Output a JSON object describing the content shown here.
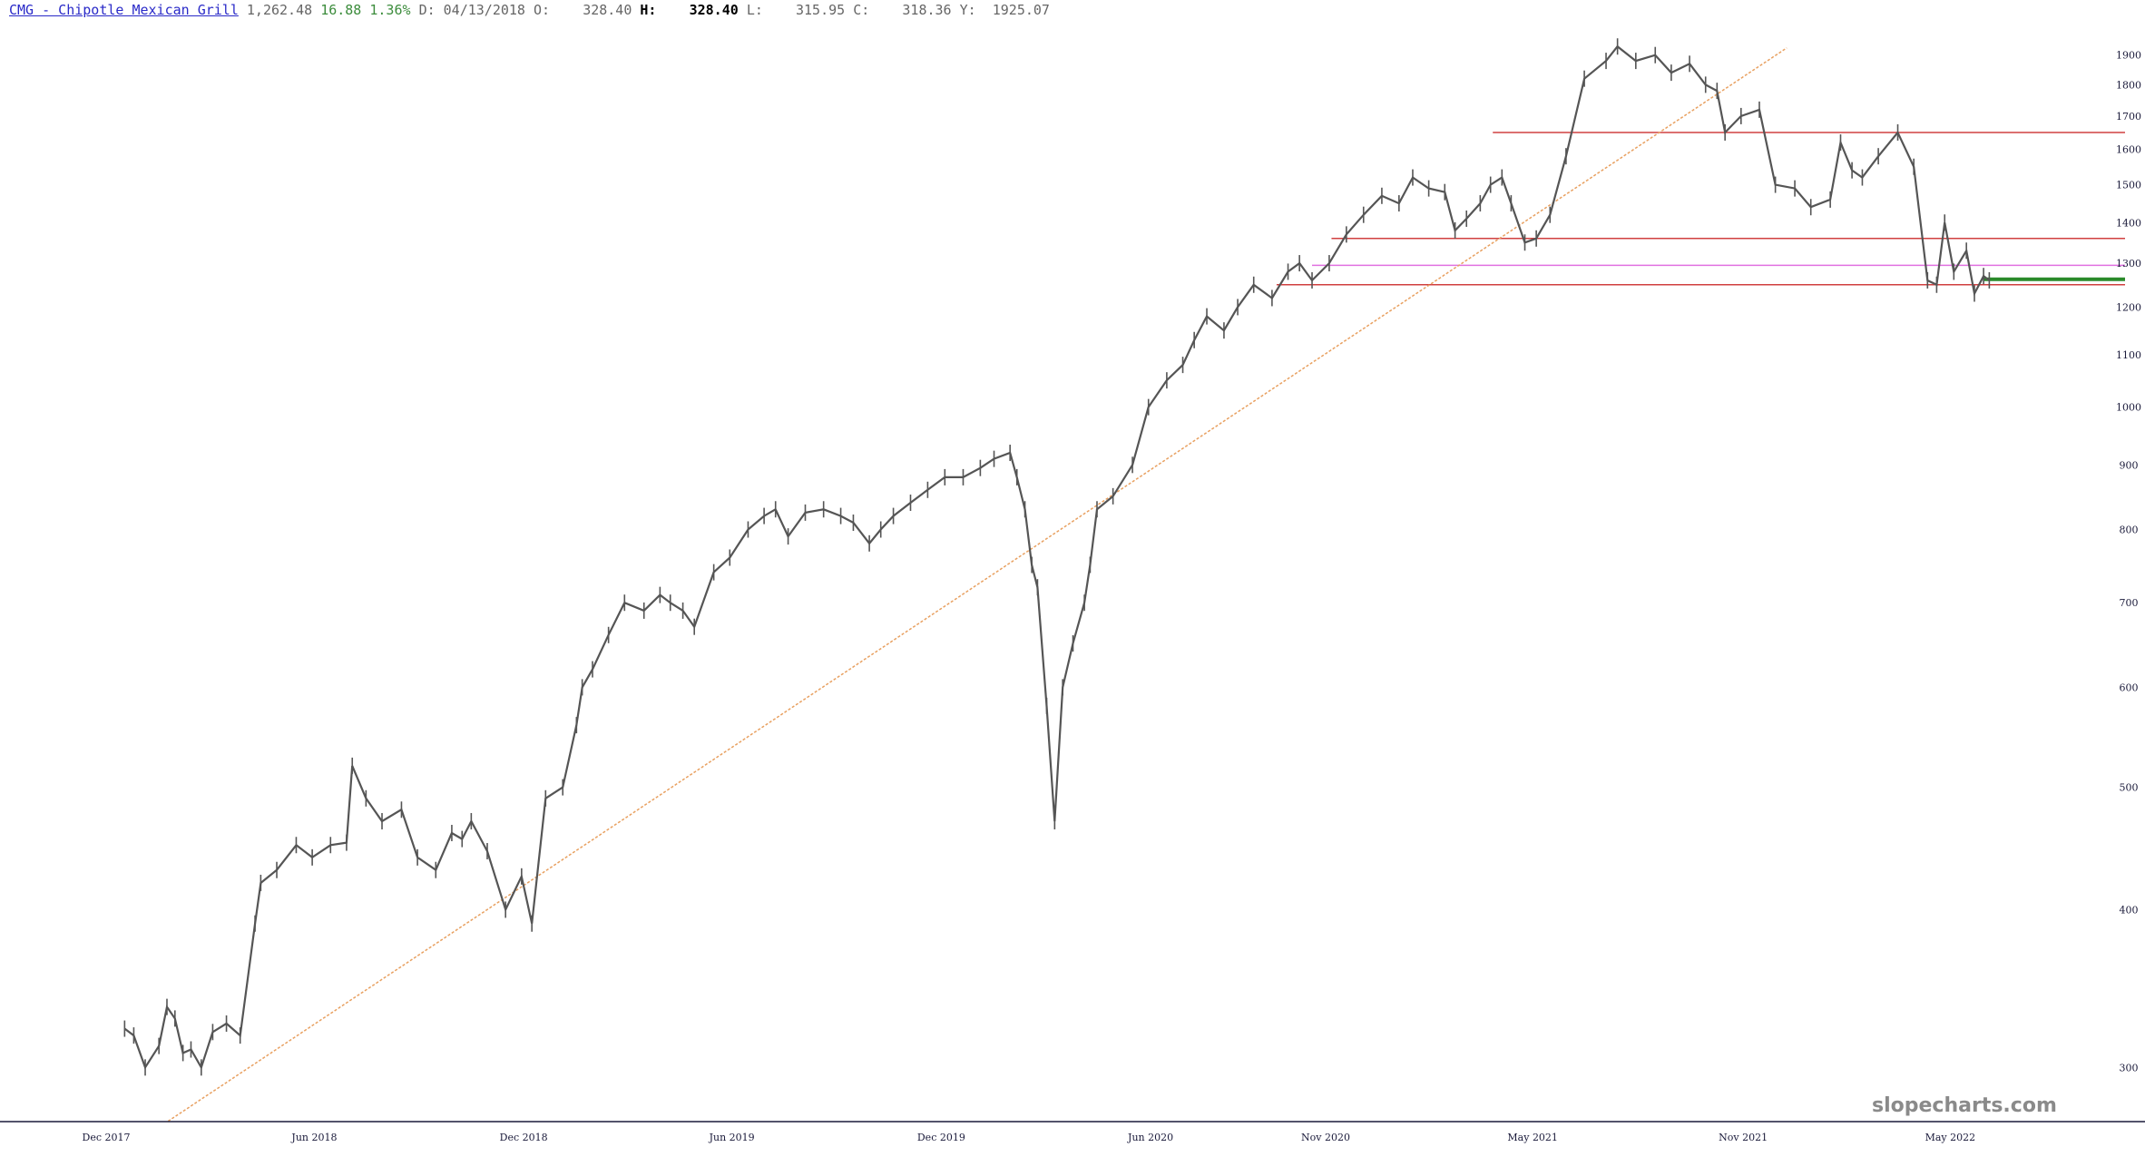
{
  "header": {
    "symbol": "CMG - Chipotle Mexican Grill",
    "last": "1,262.48",
    "change": "16.88",
    "change_pct": "1.36%",
    "date_label": "D:",
    "date": "04/13/2018",
    "open_label": "O:",
    "open": "328.40",
    "high_label": "H:",
    "high": "328.40",
    "low_label": "L:",
    "low": "315.95",
    "close_label": "C:",
    "close": "318.36",
    "y_label": "Y:",
    "y": "1925.07"
  },
  "watermark": "slopecharts.com",
  "colors": {
    "price": "#555555",
    "resistance": "#d04040",
    "support_pink": "#e070e0",
    "trendline": "#e8a060",
    "last_price": "#2a8a2a"
  },
  "chart_data": {
    "type": "line",
    "scale": "log",
    "ylim": [
      270,
      1950
    ],
    "x_ticks": [
      "Dec 2017",
      "Jun 2018",
      "Dec 2018",
      "Jun 2019",
      "Dec 2019",
      "Jun 2020",
      "Nov 2020",
      "May 2021",
      "Nov 2021",
      "May 2022"
    ],
    "y_ticks": [
      300,
      400,
      500,
      600,
      700,
      800,
      900,
      1000,
      1100,
      1200,
      1300,
      1400,
      1500,
      1600,
      1700,
      1800,
      1900
    ],
    "series": [
      {
        "x": [
          "2018-01-02",
          "2018-01-10",
          "2018-01-20",
          "2018-02-01",
          "2018-02-08",
          "2018-02-15",
          "2018-02-22",
          "2018-03-01",
          "2018-03-10",
          "2018-03-20",
          "2018-04-01",
          "2018-04-13",
          "2018-04-26",
          "2018-05-01",
          "2018-05-15",
          "2018-06-01",
          "2018-06-15",
          "2018-07-01",
          "2018-07-15",
          "2018-07-20",
          "2018-08-01",
          "2018-08-15",
          "2018-09-01",
          "2018-09-15",
          "2018-10-01",
          "2018-10-15",
          "2018-10-24",
          "2018-11-01",
          "2018-11-15",
          "2018-12-01",
          "2018-12-15",
          "2018-12-24",
          "2019-01-05",
          "2019-01-20",
          "2019-02-01",
          "2019-02-06",
          "2019-02-15",
          "2019-03-01",
          "2019-03-15",
          "2019-04-01",
          "2019-04-15",
          "2019-04-24",
          "2019-05-05",
          "2019-05-15",
          "2019-06-01",
          "2019-06-15",
          "2019-07-01",
          "2019-07-15",
          "2019-07-25",
          "2019-08-05",
          "2019-08-20",
          "2019-09-05",
          "2019-09-20",
          "2019-10-01",
          "2019-10-15",
          "2019-10-25",
          "2019-11-05",
          "2019-11-20",
          "2019-12-05",
          "2019-12-20",
          "2020-01-05",
          "2020-01-20",
          "2020-02-01",
          "2020-02-15",
          "2020-02-21",
          "2020-02-28",
          "2020-03-05",
          "2020-03-10",
          "2020-03-18",
          "2020-03-25",
          "2020-04-01",
          "2020-04-10",
          "2020-04-20",
          "2020-04-25",
          "2020-05-01",
          "2020-05-15",
          "2020-06-01",
          "2020-06-15",
          "2020-07-01",
          "2020-07-15",
          "2020-07-25",
          "2020-08-05",
          "2020-08-20",
          "2020-09-01",
          "2020-09-15",
          "2020-10-01",
          "2020-10-15",
          "2020-10-25",
          "2020-11-05",
          "2020-11-20",
          "2020-12-05",
          "2020-12-20",
          "2021-01-05",
          "2021-01-20",
          "2021-02-01",
          "2021-02-15",
          "2021-03-01",
          "2021-03-10",
          "2021-03-20",
          "2021-04-01",
          "2021-04-10",
          "2021-04-20",
          "2021-04-28",
          "2021-05-10",
          "2021-05-20",
          "2021-06-01",
          "2021-06-15",
          "2021-07-01",
          "2021-07-20",
          "2021-07-30",
          "2021-08-15",
          "2021-09-01",
          "2021-09-15",
          "2021-10-01",
          "2021-10-15",
          "2021-10-25",
          "2021-11-01",
          "2021-11-15",
          "2021-12-01",
          "2021-12-15",
          "2022-01-01",
          "2022-01-15",
          "2022-02-01",
          "2022-02-10",
          "2022-02-20",
          "2022-03-01",
          "2022-03-15",
          "2022-04-01",
          "2022-04-15",
          "2022-04-27",
          "2022-05-05",
          "2022-05-12",
          "2022-05-20",
          "2022-05-31",
          "2022-06-07",
          "2022-06-15",
          "2022-06-20"
        ],
        "y": [
          322,
          318,
          300,
          312,
          335,
          328,
          308,
          310,
          300,
          320,
          325,
          318,
          390,
          420,
          430,
          450,
          440,
          450,
          452,
          520,
          490,
          470,
          480,
          440,
          430,
          460,
          455,
          470,
          445,
          400,
          425,
          390,
          490,
          500,
          560,
          600,
          620,
          660,
          700,
          690,
          710,
          700,
          690,
          670,
          740,
          760,
          800,
          820,
          830,
          790,
          825,
          830,
          820,
          810,
          780,
          800,
          820,
          840,
          860,
          880,
          880,
          895,
          910,
          920,
          880,
          830,
          750,
          720,
          580,
          470,
          600,
          650,
          700,
          750,
          830,
          850,
          900,
          1000,
          1050,
          1080,
          1130,
          1180,
          1150,
          1200,
          1250,
          1220,
          1280,
          1300,
          1260,
          1300,
          1370,
          1420,
          1470,
          1450,
          1520,
          1490,
          1480,
          1380,
          1410,
          1450,
          1500,
          1520,
          1450,
          1350,
          1360,
          1420,
          1580,
          1820,
          1880,
          1930,
          1880,
          1900,
          1840,
          1870,
          1800,
          1780,
          1650,
          1700,
          1720,
          1500,
          1490,
          1440,
          1460,
          1620,
          1540,
          1520,
          1580,
          1650,
          1550,
          1260,
          1250,
          1400,
          1280,
          1330,
          1230,
          1270,
          1260
        ]
      }
    ],
    "trendline": {
      "start": {
        "x": "2018-02-09",
        "y": 272
      },
      "end": {
        "x": "2021-12-25",
        "y": 1925
      }
    },
    "horizontal_lines": [
      {
        "kind": "resistance",
        "from": "2021-04-12",
        "y": 1650
      },
      {
        "kind": "resistance",
        "from": "2020-11-22",
        "y": 1360
      },
      {
        "kind": "support",
        "from": "2020-11-05",
        "y": 1295
      },
      {
        "kind": "resistance",
        "from": "2020-10-05",
        "y": 1250
      },
      {
        "kind": "last_price",
        "from": "2022-06-15",
        "y": 1262.48
      }
    ],
    "grid": false,
    "legend": "none"
  }
}
